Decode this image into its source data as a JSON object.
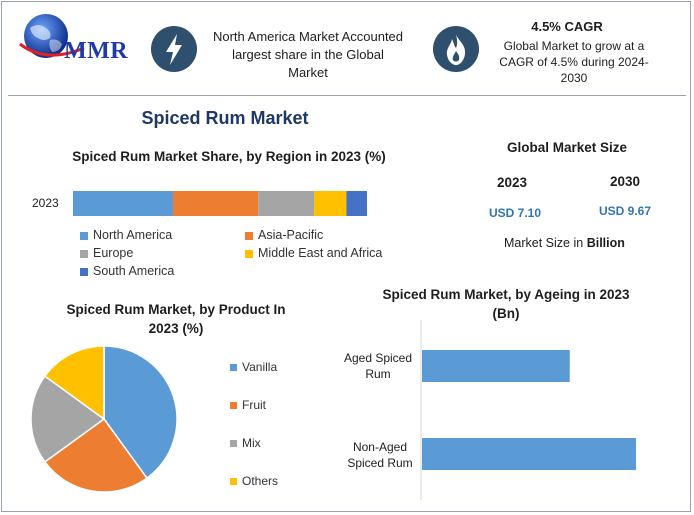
{
  "logo": {
    "text": "MMR"
  },
  "header": {
    "region_card": {
      "icon": "lightning-icon",
      "text": "North America Market Accounted largest share in the Global Market"
    },
    "cagr_card": {
      "icon": "flame-icon",
      "title": "4.5% CAGR",
      "text": "Global Market to grow at a CAGR of 4.5% during 2024-2030"
    }
  },
  "main_title": "Spiced Rum Market",
  "market_size": {
    "title": "Global Market Size",
    "year1": "2023",
    "year2": "2030",
    "value1": "USD 7.10",
    "value2": "USD 9.67",
    "unit_prefix": "Market Size in",
    "unit_bold": "Billion",
    "value_color": "#2e75b6"
  },
  "colors": {
    "blue": "#5b9bd5",
    "orange": "#ed7d31",
    "gray": "#a5a5a5",
    "yellow": "#ffc000",
    "darkblue": "#4472c4",
    "icon_bg": "#2f4f6f"
  },
  "chart_data": [
    {
      "type": "bar",
      "stacked": true,
      "orientation": "horizontal",
      "title": "Spiced Rum Market Share, by Region in 2023 (%)",
      "categories": [
        "2023"
      ],
      "series": [
        {
          "name": "North America",
          "values": [
            34
          ]
        },
        {
          "name": "Asia-Pacific",
          "values": [
            29
          ]
        },
        {
          "name": "Europe",
          "values": [
            19
          ]
        },
        {
          "name": "Middle East and Africa",
          "values": [
            11
          ]
        },
        {
          "name": "South America",
          "values": [
            7
          ]
        }
      ],
      "grid": false,
      "legend": "bottom"
    },
    {
      "type": "pie",
      "title": "Spiced Rum Market, by Product In 2023 (%)",
      "categories": [
        "Vanilla",
        "Fruit",
        "Mix",
        "Others"
      ],
      "values": [
        40,
        25,
        20,
        15
      ],
      "legend": "right"
    },
    {
      "type": "bar",
      "orientation": "horizontal",
      "title": "Spiced Rum Market, by Ageing in 2023 (Bn)",
      "categories": [
        "Aged Spiced Rum",
        "Non-Aged Spiced Rum"
      ],
      "values": [
        2.9,
        4.2
      ],
      "xlim": [
        0,
        4.2
      ],
      "grid": false
    }
  ]
}
